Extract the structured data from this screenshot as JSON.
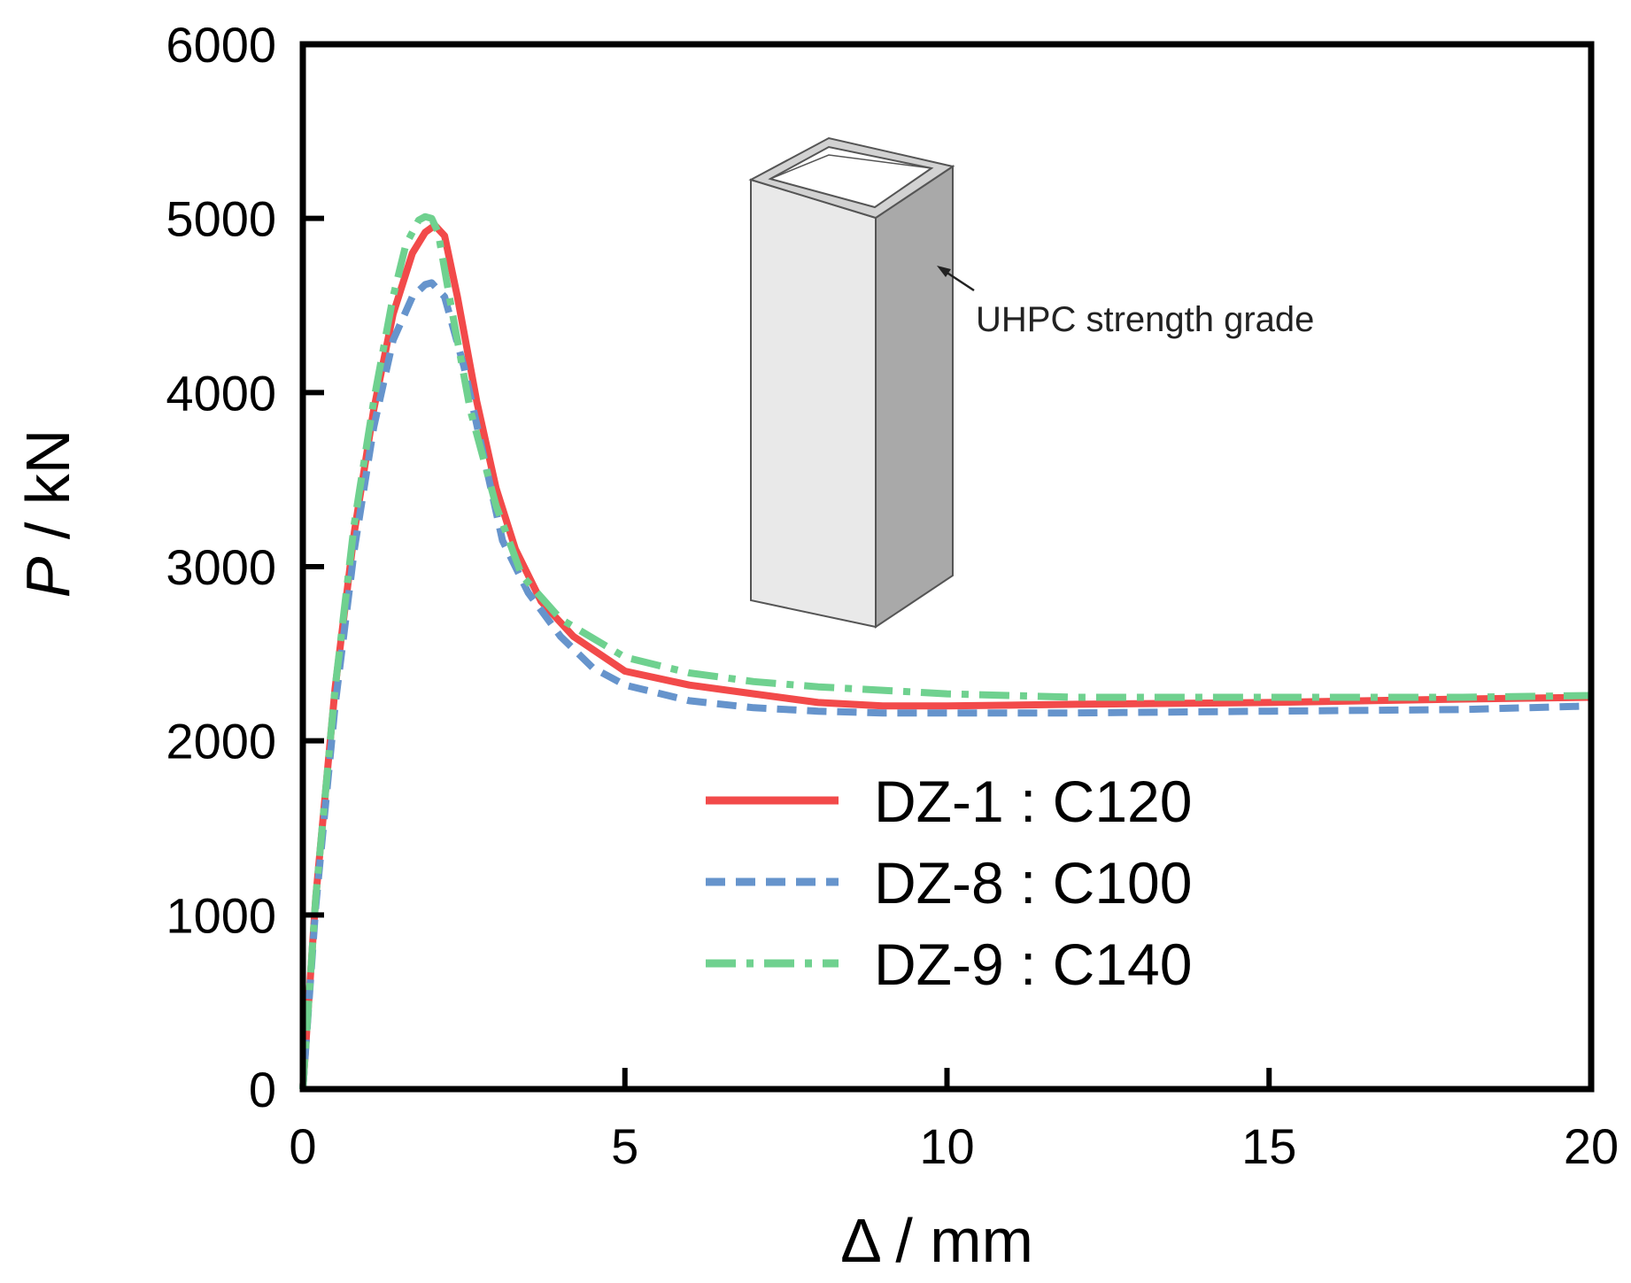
{
  "chart_data": {
    "type": "line",
    "title": "",
    "xlabel": "Δ / mm",
    "ylabel_italic": "P",
    "ylabel_rest": " / kN",
    "xlim": [
      0,
      20
    ],
    "ylim": [
      0,
      6000
    ],
    "x_ticks": [
      0,
      5,
      10,
      15,
      20
    ],
    "y_ticks": [
      0,
      1000,
      2000,
      3000,
      4000,
      5000,
      6000
    ],
    "x_tick_labels": [
      "0",
      "5",
      "10",
      "15",
      "20"
    ],
    "y_tick_labels": [
      "0",
      "1000",
      "2000",
      "3000",
      "4000",
      "5000",
      "6000"
    ],
    "grid": false,
    "legend_position": "center-right",
    "annotation": "UHPC strength grade",
    "series": [
      {
        "name": "DZ-1 : C120",
        "color": "#f24a4a",
        "dash": "solid",
        "x": [
          0,
          0.2,
          0.5,
          0.8,
          1.1,
          1.4,
          1.7,
          1.9,
          2.05,
          2.2,
          2.4,
          2.7,
          3.0,
          3.3,
          3.7,
          4.2,
          5.0,
          6.0,
          7.0,
          8.0,
          9.0,
          10.0,
          12.0,
          15.0,
          18.0,
          20.0
        ],
        "y": [
          0,
          1100,
          2300,
          3200,
          3900,
          4450,
          4800,
          4920,
          4960,
          4900,
          4550,
          3950,
          3450,
          3100,
          2800,
          2600,
          2400,
          2320,
          2270,
          2220,
          2200,
          2200,
          2210,
          2220,
          2240,
          2250
        ]
      },
      {
        "name": "DZ-8 : C100",
        "color": "#6694cc",
        "dash": "dash",
        "x": [
          0,
          0.2,
          0.5,
          0.8,
          1.1,
          1.4,
          1.7,
          1.9,
          2.0,
          2.2,
          2.5,
          2.8,
          3.1,
          3.5,
          4.0,
          4.5,
          5.0,
          6.0,
          7.0,
          8.0,
          9.0,
          10.0,
          12.0,
          15.0,
          18.0,
          20.0
        ],
        "y": [
          0,
          1050,
          2200,
          3100,
          3800,
          4300,
          4550,
          4620,
          4630,
          4550,
          4150,
          3650,
          3150,
          2850,
          2600,
          2420,
          2320,
          2230,
          2190,
          2170,
          2160,
          2160,
          2160,
          2170,
          2180,
          2200
        ]
      },
      {
        "name": "DZ-9 : C140",
        "color": "#6fd18f",
        "dash": "dashdot",
        "x": [
          0,
          0.2,
          0.5,
          0.8,
          1.1,
          1.4,
          1.6,
          1.8,
          1.9,
          2.0,
          2.1,
          2.3,
          2.6,
          3.0,
          3.4,
          4.0,
          5.0,
          6.0,
          7.0,
          8.0,
          9.0,
          10.0,
          12.0,
          15.0,
          18.0,
          20.0
        ],
        "y": [
          0,
          1100,
          2300,
          3250,
          3950,
          4550,
          4850,
          4990,
          5010,
          5000,
          4920,
          4500,
          3900,
          3350,
          2950,
          2700,
          2480,
          2390,
          2340,
          2310,
          2290,
          2270,
          2250,
          2250,
          2250,
          2260
        ]
      }
    ]
  },
  "colors": {
    "axis": "#000000",
    "column_front": "#e9e9e9",
    "column_side": "#a9a9a9",
    "column_top": "#d2d2d2",
    "column_edge": "#555555"
  }
}
